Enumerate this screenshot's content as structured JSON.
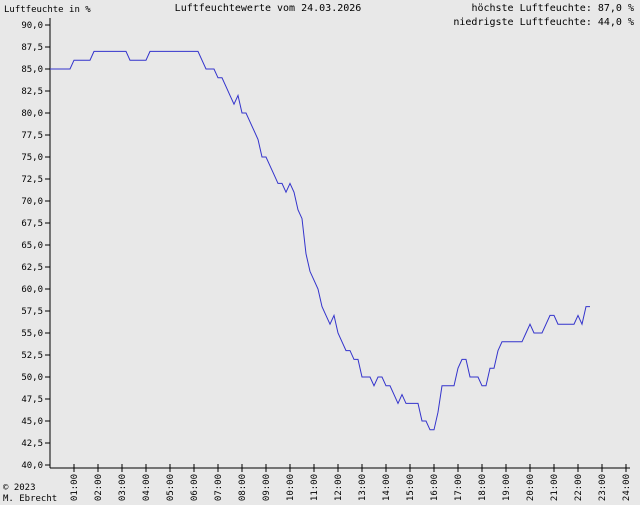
{
  "chart_data": {
    "type": "line",
    "title": "Luftfeuchtewerte vom 24.03.2026",
    "ylabel": "Luftfeuchte in %",
    "max_text": "höchste Luftfeuchte: 87,0 %",
    "min_text": "niedrigste Luftfeuchte: 44,0 %",
    "copyright": "© 2023",
    "author": "M. Ebrecht",
    "color": "#3333cc",
    "xlim": [
      0,
      1440
    ],
    "ylim": [
      40,
      90
    ],
    "xticks": [
      {
        "value": 60,
        "label": "01:00"
      },
      {
        "value": 120,
        "label": "02:00"
      },
      {
        "value": 180,
        "label": "03:00"
      },
      {
        "value": 240,
        "label": "04:00"
      },
      {
        "value": 300,
        "label": "05:00"
      },
      {
        "value": 360,
        "label": "06:00"
      },
      {
        "value": 420,
        "label": "07:00"
      },
      {
        "value": 480,
        "label": "08:00"
      },
      {
        "value": 540,
        "label": "09:00"
      },
      {
        "value": 600,
        "label": "10:00"
      },
      {
        "value": 660,
        "label": "11:00"
      },
      {
        "value": 720,
        "label": "12:00"
      },
      {
        "value": 780,
        "label": "13:00"
      },
      {
        "value": 840,
        "label": "14:00"
      },
      {
        "value": 900,
        "label": "15:00"
      },
      {
        "value": 960,
        "label": "16:00"
      },
      {
        "value": 1020,
        "label": "17:00"
      },
      {
        "value": 1080,
        "label": "18:00"
      },
      {
        "value": 1140,
        "label": "19:00"
      },
      {
        "value": 1200,
        "label": "20:00"
      },
      {
        "value": 1260,
        "label": "21:00"
      },
      {
        "value": 1320,
        "label": "22:00"
      },
      {
        "value": 1380,
        "label": "23:00"
      },
      {
        "value": 1440,
        "label": "24:00"
      }
    ],
    "yticks": [
      {
        "value": 40,
        "label": "40,0"
      },
      {
        "value": 42.5,
        "label": "42,5"
      },
      {
        "value": 45,
        "label": "45,0"
      },
      {
        "value": 47.5,
        "label": "47,5"
      },
      {
        "value": 50,
        "label": "50,0"
      },
      {
        "value": 52.5,
        "label": "52,5"
      },
      {
        "value": 55,
        "label": "55,0"
      },
      {
        "value": 57.5,
        "label": "57,5"
      },
      {
        "value": 60,
        "label": "60,0"
      },
      {
        "value": 62.5,
        "label": "62,5"
      },
      {
        "value": 65,
        "label": "65,0"
      },
      {
        "value": 67.5,
        "label": "67,5"
      },
      {
        "value": 70,
        "label": "70,0"
      },
      {
        "value": 72.5,
        "label": "72,5"
      },
      {
        "value": 75,
        "label": "75,0"
      },
      {
        "value": 77.5,
        "label": "77,5"
      },
      {
        "value": 80,
        "label": "80,0"
      },
      {
        "value": 82.5,
        "label": "82,5"
      },
      {
        "value": 85,
        "label": "85,0"
      },
      {
        "value": 87.5,
        "label": "87,5"
      },
      {
        "value": 90,
        "label": "90,0"
      }
    ],
    "x": [
      0,
      10,
      20,
      30,
      40,
      50,
      60,
      70,
      80,
      90,
      100,
      110,
      120,
      130,
      140,
      150,
      160,
      170,
      180,
      190,
      200,
      210,
      220,
      230,
      240,
      250,
      260,
      270,
      280,
      290,
      300,
      310,
      320,
      330,
      340,
      350,
      360,
      370,
      380,
      390,
      400,
      410,
      420,
      430,
      440,
      450,
      460,
      470,
      480,
      490,
      500,
      510,
      520,
      530,
      540,
      550,
      560,
      570,
      580,
      590,
      600,
      610,
      620,
      630,
      640,
      650,
      660,
      670,
      680,
      690,
      700,
      710,
      720,
      730,
      740,
      750,
      760,
      770,
      780,
      790,
      800,
      810,
      820,
      830,
      840,
      850,
      860,
      870,
      880,
      890,
      900,
      910,
      920,
      930,
      940,
      950,
      960,
      970,
      980,
      990,
      1000,
      1010,
      1020,
      1030,
      1040,
      1050,
      1060,
      1070,
      1080,
      1090,
      1100,
      1110,
      1120,
      1130,
      1140,
      1150,
      1160,
      1170,
      1180,
      1190,
      1200,
      1210,
      1220,
      1230,
      1240,
      1250,
      1260,
      1270,
      1280,
      1290,
      1300,
      1310,
      1320,
      1330,
      1340,
      1350
    ],
    "values": [
      85,
      85,
      85,
      85,
      85,
      85,
      86,
      86,
      86,
      86,
      86,
      87,
      87,
      87,
      87,
      87,
      87,
      87,
      87,
      87,
      86,
      86,
      86,
      86,
      86,
      87,
      87,
      87,
      87,
      87,
      87,
      87,
      87,
      87,
      87,
      87,
      87,
      87,
      86,
      85,
      85,
      85,
      84,
      84,
      83,
      82,
      81,
      82,
      80,
      80,
      79,
      78,
      77,
      75,
      75,
      74,
      73,
      72,
      72,
      71,
      72,
      71,
      69,
      68,
      64,
      62,
      61,
      60,
      58,
      57,
      56,
      57,
      55,
      54,
      53,
      53,
      52,
      52,
      50,
      50,
      50,
      49,
      50,
      50,
      49,
      49,
      48,
      47,
      48,
      47,
      47,
      47,
      47,
      45,
      45,
      44,
      44,
      46,
      49,
      49,
      49,
      49,
      51,
      52,
      52,
      50,
      50,
      50,
      49,
      49,
      51,
      51,
      53,
      54,
      54,
      54,
      54,
      54,
      54,
      55,
      56,
      55,
      55,
      55,
      56,
      57,
      57,
      56,
      56,
      56,
      56,
      56,
      57,
      56,
      58,
      58
    ]
  }
}
